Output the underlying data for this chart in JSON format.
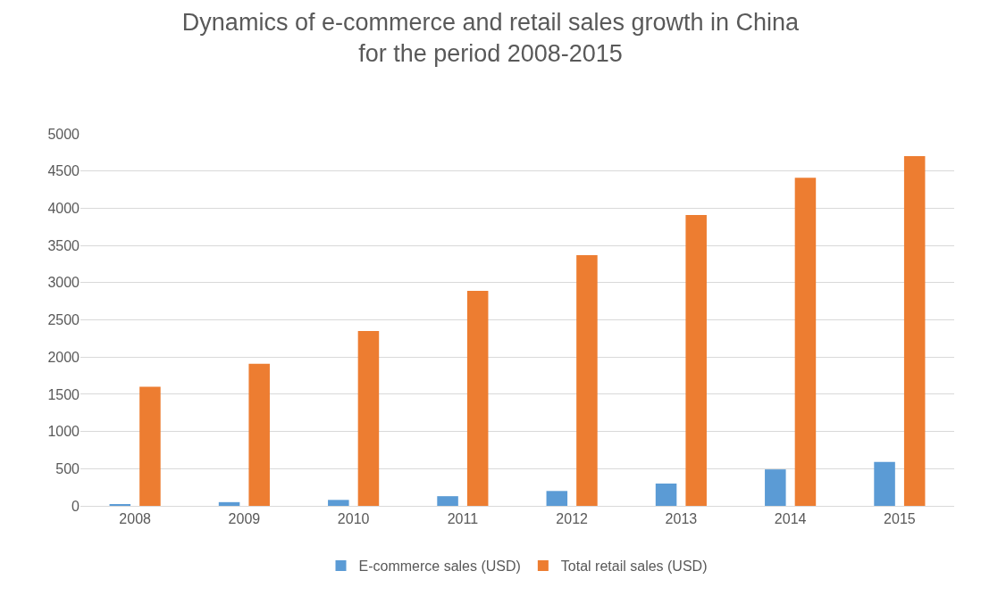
{
  "chart_data": {
    "type": "bar",
    "title": "Dynamics of e-commerce and retail sales growth in China\nfor the period 2008-2015",
    "categories": [
      "2008",
      "2009",
      "2010",
      "2011",
      "2012",
      "2013",
      "2014",
      "2015"
    ],
    "series": [
      {
        "name": "E-commerce sales (USD)",
        "color": "#5b9bd5",
        "values": [
          20,
          50,
          80,
          130,
          200,
          300,
          490,
          590
        ]
      },
      {
        "name": "Total retail sales (USD)",
        "color": "#ed7d31",
        "values": [
          1600,
          1910,
          2350,
          2890,
          3370,
          3910,
          4410,
          4700
        ]
      }
    ],
    "ylim": [
      0,
      5000
    ],
    "yticks": [
      0,
      500,
      1000,
      1500,
      2000,
      2500,
      3000,
      3500,
      4000,
      4500,
      5000
    ],
    "grid": "y",
    "legend": "bottom"
  }
}
